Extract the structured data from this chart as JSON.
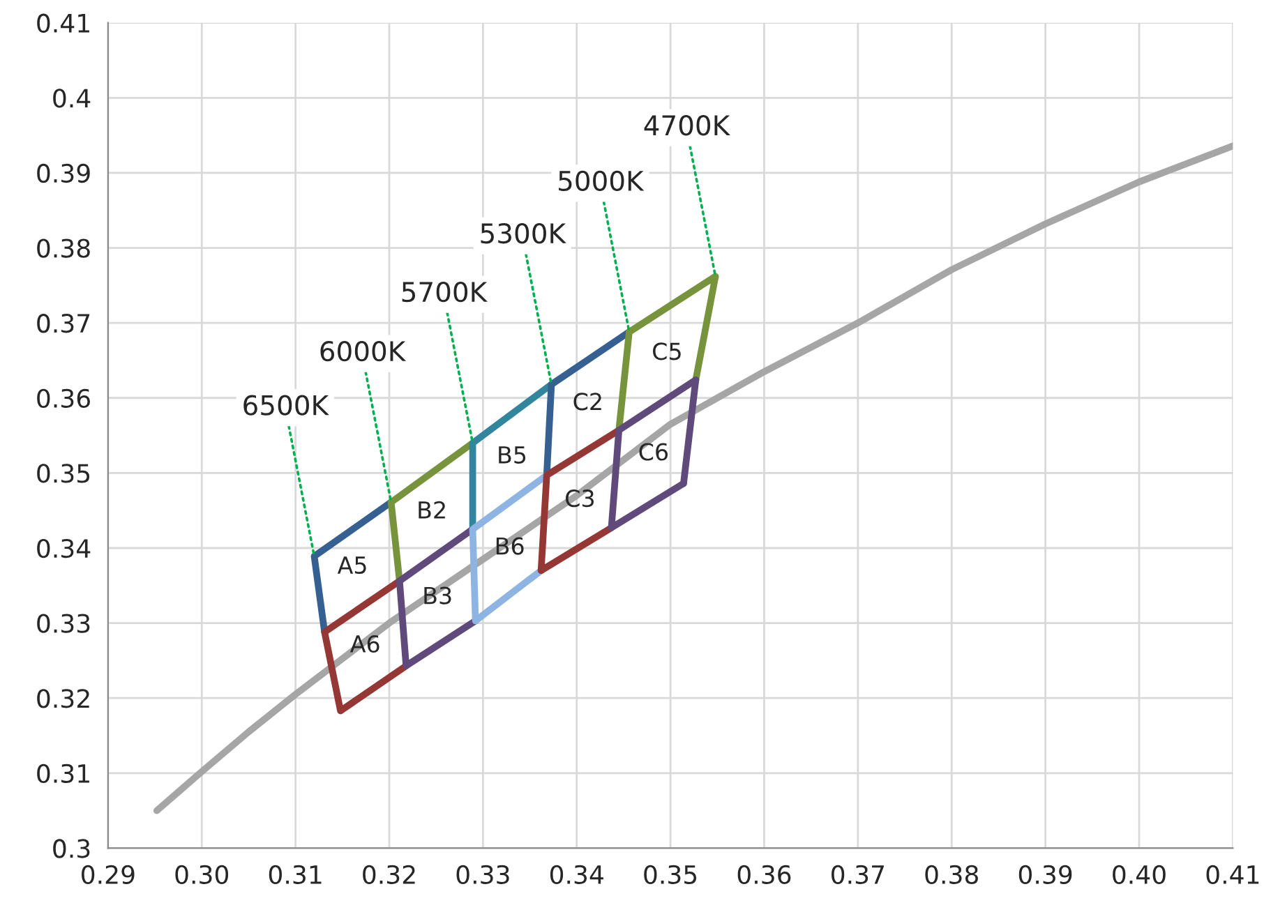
{
  "chart_data": {
    "type": "line",
    "xlim": [
      0.29,
      0.41
    ],
    "ylim": [
      0.3,
      0.41
    ],
    "xticks": [
      {
        "value": 0.29,
        "label": "0.29"
      },
      {
        "value": 0.3,
        "label": "0.30"
      },
      {
        "value": 0.31,
        "label": "0.31"
      },
      {
        "value": 0.32,
        "label": "0.32"
      },
      {
        "value": 0.33,
        "label": "0.33"
      },
      {
        "value": 0.34,
        "label": "0.34"
      },
      {
        "value": 0.35,
        "label": "0.35"
      },
      {
        "value": 0.36,
        "label": "0.36"
      },
      {
        "value": 0.37,
        "label": "0.37"
      },
      {
        "value": 0.38,
        "label": "0.38"
      },
      {
        "value": 0.39,
        "label": "0.39"
      },
      {
        "value": 0.4,
        "label": "0.40"
      },
      {
        "value": 0.41,
        "label": "0.41"
      }
    ],
    "yticks": [
      {
        "value": 0.3,
        "label": "0.3"
      },
      {
        "value": 0.31,
        "label": "0.31"
      },
      {
        "value": 0.32,
        "label": "0.32"
      },
      {
        "value": 0.33,
        "label": "0.33"
      },
      {
        "value": 0.34,
        "label": "0.34"
      },
      {
        "value": 0.35,
        "label": "0.35"
      },
      {
        "value": 0.36,
        "label": "0.36"
      },
      {
        "value": 0.37,
        "label": "0.37"
      },
      {
        "value": 0.38,
        "label": "0.38"
      },
      {
        "value": 0.39,
        "label": "0.39"
      },
      {
        "value": 0.4,
        "label": "0.4"
      },
      {
        "value": 0.41,
        "label": "0.41"
      }
    ],
    "grid": true,
    "legend": false,
    "marker": "none",
    "line_style": "solid",
    "series": [
      {
        "color": "#a6a6a6",
        "x": [
          0.2952,
          0.3,
          0.305,
          0.31,
          0.32,
          0.33,
          0.34,
          0.35,
          0.36,
          0.37,
          0.38,
          0.39,
          0.4,
          0.41
        ],
        "values": [
          0.305,
          0.3102,
          0.3155,
          0.3205,
          0.33,
          0.3385,
          0.347,
          0.3565,
          0.3635,
          0.37,
          0.3771,
          0.3832,
          0.3888,
          0.3936
        ]
      },
      {
        "name": "A5",
        "color": "#376092",
        "x": [
          0.3131,
          0.312,
          0.3202
        ],
        "values": [
          0.3288,
          0.3389,
          0.3461
        ]
      },
      {
        "name": "B2",
        "color": "#77933c",
        "x": [
          0.3211,
          0.3202,
          0.3289
        ],
        "values": [
          0.3356,
          0.3461,
          0.354
        ]
      },
      {
        "name": "B5",
        "color": "#31859c",
        "x": [
          0.3289,
          0.3289,
          0.3373
        ],
        "values": [
          0.3425,
          0.354,
          0.3618
        ]
      },
      {
        "name": "C2",
        "color": "#376092",
        "x": [
          0.3368,
          0.3373,
          0.3456
        ],
        "values": [
          0.3497,
          0.3618,
          0.3688
        ]
      },
      {
        "name": "C5",
        "color": "#77933c",
        "x": [
          0.3445,
          0.3456,
          0.3548,
          0.3527
        ],
        "values": [
          0.3557,
          0.3688,
          0.3762,
          0.3624
        ]
      },
      {
        "name": "A6",
        "color": "#953735",
        "x": [
          0.3211,
          0.3131,
          0.3148,
          0.3218
        ],
        "values": [
          0.3356,
          0.3288,
          0.3183,
          0.3243
        ]
      },
      {
        "name": "B3",
        "color": "#604a7b",
        "x": [
          0.3289,
          0.3211,
          0.3218,
          0.3292
        ],
        "values": [
          0.3425,
          0.3356,
          0.3243,
          0.3303
        ]
      },
      {
        "name": "B6",
        "color": "#8db4e2",
        "x": [
          0.3368,
          0.3289,
          0.3292,
          0.3362
        ],
        "values": [
          0.3497,
          0.3425,
          0.3303,
          0.337
        ]
      },
      {
        "name": "C3",
        "color": "#953735",
        "x": [
          0.3445,
          0.3368,
          0.3362,
          0.3437
        ],
        "values": [
          0.3557,
          0.3497,
          0.337,
          0.3427
        ]
      },
      {
        "name": "C6",
        "color": "#604a7b",
        "x": [
          0.3527,
          0.3445,
          0.3437,
          0.3514
        ],
        "values": [
          0.3624,
          0.3557,
          0.3427,
          0.3486
        ]
      },
      {
        "color": "#604a7b",
        "x": [
          0.3514,
          0.3527
        ],
        "values": [
          0.3486,
          0.3624
        ]
      }
    ],
    "annotations": [
      {
        "text": "6500K",
        "x": 0.312,
        "y": 0.3389
      },
      {
        "text": "6000K",
        "x": 0.3202,
        "y": 0.3461
      },
      {
        "text": "5700K",
        "x": 0.3289,
        "y": 0.354
      },
      {
        "text": "5300K",
        "x": 0.3373,
        "y": 0.3618
      },
      {
        "text": "5000K",
        "x": 0.3456,
        "y": 0.3688
      },
      {
        "text": "4700K",
        "x": 0.3548,
        "y": 0.3762
      }
    ]
  }
}
